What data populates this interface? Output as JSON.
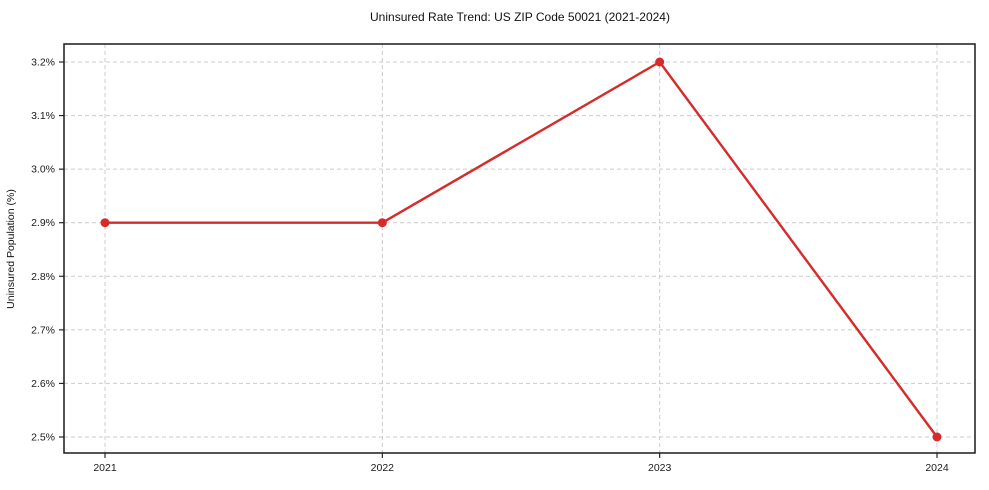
{
  "chart_data": {
    "type": "line",
    "title": "Uninsured Rate Trend: US ZIP Code 50021 (2021-2024)",
    "xlabel": "",
    "ylabel": "Uninsured Population (%)",
    "x": [
      "2021",
      "2022",
      "2023",
      "2024"
    ],
    "series": [
      {
        "name": "Uninsured Rate",
        "values": [
          2.9,
          2.9,
          3.2,
          2.5
        ]
      }
    ],
    "y_ticks": [
      2.5,
      2.6,
      2.7,
      2.8,
      2.9,
      3.0,
      3.1,
      3.2
    ],
    "y_tick_labels": [
      "2.5%",
      "2.6%",
      "2.7%",
      "2.8%",
      "2.9%",
      "3.0%",
      "3.1%",
      "3.2%"
    ],
    "ylim": [
      2.5,
      3.2
    ],
    "grid": true,
    "grid_style": "dashed",
    "legend_position": "none",
    "line_color": "#d62b2b",
    "marker": "circle",
    "grid_color": "#cccccc",
    "axis_color": "#1a1a1a",
    "background_color": "#ffffff"
  }
}
